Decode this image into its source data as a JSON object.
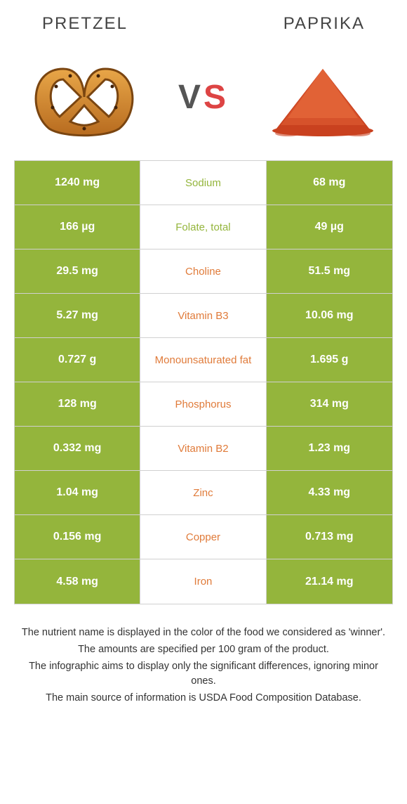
{
  "header": {
    "left_title": "Pretzel",
    "right_title": "Paprika"
  },
  "vs_label": {
    "v": "V",
    "s": "S"
  },
  "colors": {
    "pretzel_bg": "#94b53c",
    "paprika_bg": "#94b53c",
    "midlabel_win_left": "#94b53c",
    "midlabel_win_right": "#e07b3a"
  },
  "rows": [
    {
      "left": "1240 mg",
      "label": "Sodium",
      "right": "68 mg",
      "winner": "left"
    },
    {
      "left": "166 µg",
      "label": "Folate, total",
      "right": "49 µg",
      "winner": "left"
    },
    {
      "left": "29.5 mg",
      "label": "Choline",
      "right": "51.5 mg",
      "winner": "right"
    },
    {
      "left": "5.27 mg",
      "label": "Vitamin B3",
      "right": "10.06 mg",
      "winner": "right"
    },
    {
      "left": "0.727 g",
      "label": "Monounsaturated fat",
      "right": "1.695 g",
      "winner": "right"
    },
    {
      "left": "128 mg",
      "label": "Phosphorus",
      "right": "314 mg",
      "winner": "right"
    },
    {
      "left": "0.332 mg",
      "label": "Vitamin B2",
      "right": "1.23 mg",
      "winner": "right"
    },
    {
      "left": "1.04 mg",
      "label": "Zinc",
      "right": "4.33 mg",
      "winner": "right"
    },
    {
      "left": "0.156 mg",
      "label": "Copper",
      "right": "0.713 mg",
      "winner": "right"
    },
    {
      "left": "4.58 mg",
      "label": "Iron",
      "right": "21.14 mg",
      "winner": "right"
    }
  ],
  "footer": {
    "line1": "The nutrient name is displayed in the color of the food we considered as 'winner'.",
    "line2": "The amounts are specified per 100 gram of the product.",
    "line3": "The infographic aims to display only the significant differences, ignoring minor ones.",
    "line4": "The main source of information is USDA Food Composition Database."
  }
}
